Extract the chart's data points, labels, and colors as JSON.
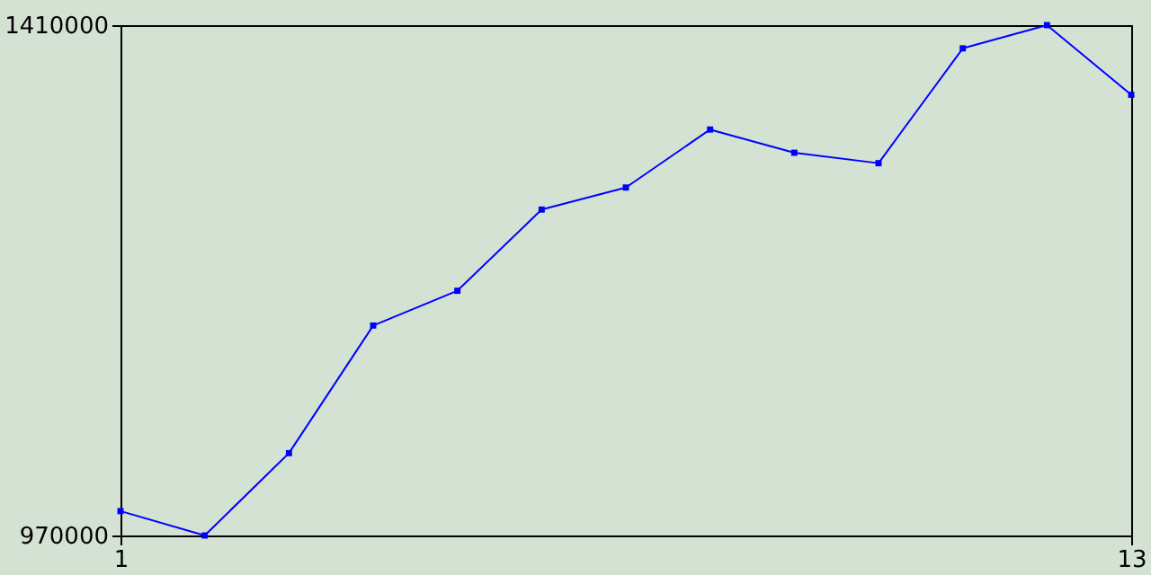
{
  "chart_data": {
    "type": "line",
    "x": [
      1,
      2,
      3,
      4,
      5,
      6,
      7,
      8,
      9,
      10,
      11,
      12,
      13
    ],
    "series": [
      {
        "color": "#0000ff",
        "values": [
          991000,
          970000,
          1041000,
          1151000,
          1181000,
          1251000,
          1270000,
          1320000,
          1300000,
          1291000,
          1390000,
          1410000,
          1350000
        ]
      }
    ],
    "xlim": [
      1,
      13
    ],
    "xticks": [
      1,
      13
    ],
    "ylim": [
      970000,
      1410000
    ],
    "yticks": [
      970000,
      1410000
    ],
    "grid": false,
    "legend": false,
    "marker": "square",
    "line_style": "solid"
  }
}
